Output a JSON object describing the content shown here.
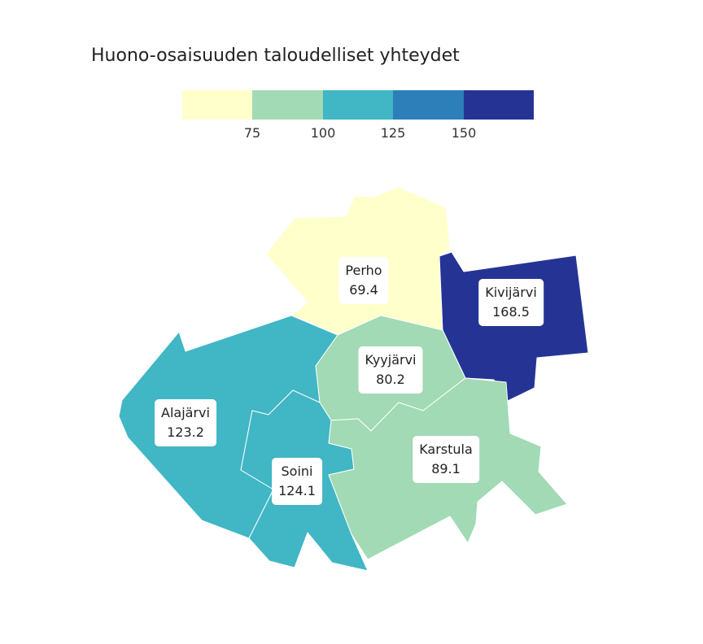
{
  "title": "Huono-osaisuuden taloudelliset yhteydet",
  "legend": {
    "colors": [
      "#ffffcc",
      "#a1dab4",
      "#41b6c4",
      "#2c7fb8",
      "#253494"
    ],
    "ticks": [
      "75",
      "100",
      "125",
      "150"
    ]
  },
  "regions": [
    {
      "name": "Perho",
      "value": "69.4",
      "color": "#ffffcc"
    },
    {
      "name": "Kivijärvi",
      "value": "168.5",
      "color": "#253494"
    },
    {
      "name": "Kyyjärvi",
      "value": "80.2",
      "color": "#a1dab4"
    },
    {
      "name": "Alajärvi",
      "value": "123.2",
      "color": "#41b6c4"
    },
    {
      "name": "Soini",
      "value": "124.1",
      "color": "#41b6c4"
    },
    {
      "name": "Karstula",
      "value": "89.1",
      "color": "#a1dab4"
    }
  ]
}
